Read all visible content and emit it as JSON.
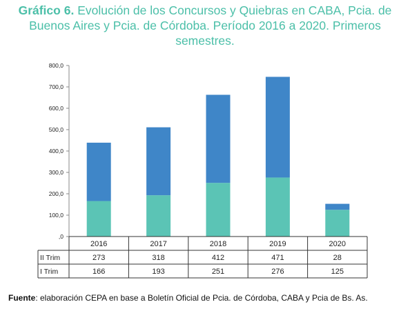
{
  "title": {
    "bold": "Gráfico 6.",
    "line1": "Evolución de los Concursos y Quiebras en CABA, Pcia. de",
    "line2": "Buenos Aires y Pcia. de Córdoba. Período 2016 a 2020. Primeros",
    "line3": "semestres."
  },
  "source": {
    "label": "Fuente",
    "text": ": elaboración CEPA en base a Boletín Oficial de Pcia. de Córdoba, CABA y Pcia de Bs. As."
  },
  "colors": {
    "I Trim": "#5bc4b5",
    "II Trim": "#3f86c8",
    "title": "#4bbfa8"
  },
  "chart_data": {
    "type": "bar",
    "stacked": true,
    "categories": [
      "2016",
      "2017",
      "2018",
      "2019",
      "2020"
    ],
    "series": [
      {
        "name": "I Trim",
        "values": [
          166,
          193,
          251,
          276,
          125
        ],
        "color": "#5bc4b5"
      },
      {
        "name": "II Trim",
        "values": [
          273,
          318,
          412,
          471,
          28
        ],
        "color": "#3f86c8"
      }
    ],
    "table_rows_order": [
      "II Trim",
      "I Trim"
    ],
    "yticks": [
      ",0",
      "100,0",
      "200,0",
      "300,0",
      "400,0",
      "500,0",
      "600,0",
      "700,0",
      "800,0"
    ],
    "ylim": [
      0,
      800
    ],
    "grid": false,
    "legend": "data table below chart"
  }
}
